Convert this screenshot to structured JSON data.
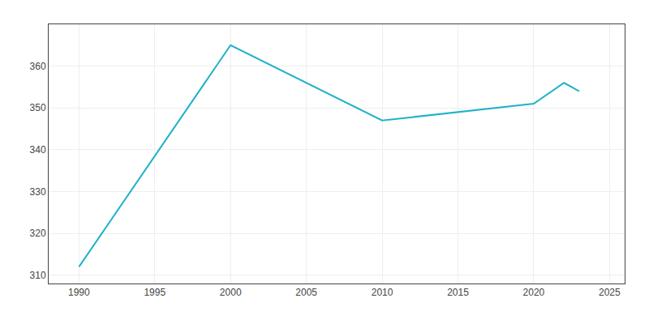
{
  "chart_data": {
    "type": "line",
    "x": [
      1990,
      2000,
      2010,
      2015,
      2020,
      2022,
      2023
    ],
    "values": [
      312,
      365,
      347,
      349,
      351,
      356,
      354
    ],
    "color": "#20b2c8",
    "xlim": [
      1988,
      2026
    ],
    "ylim": [
      308,
      370
    ],
    "xticks": [
      1990,
      1995,
      2000,
      2005,
      2010,
      2015,
      2020,
      2025
    ],
    "yticks": [
      310,
      320,
      330,
      340,
      350,
      360
    ],
    "grid": true
  }
}
